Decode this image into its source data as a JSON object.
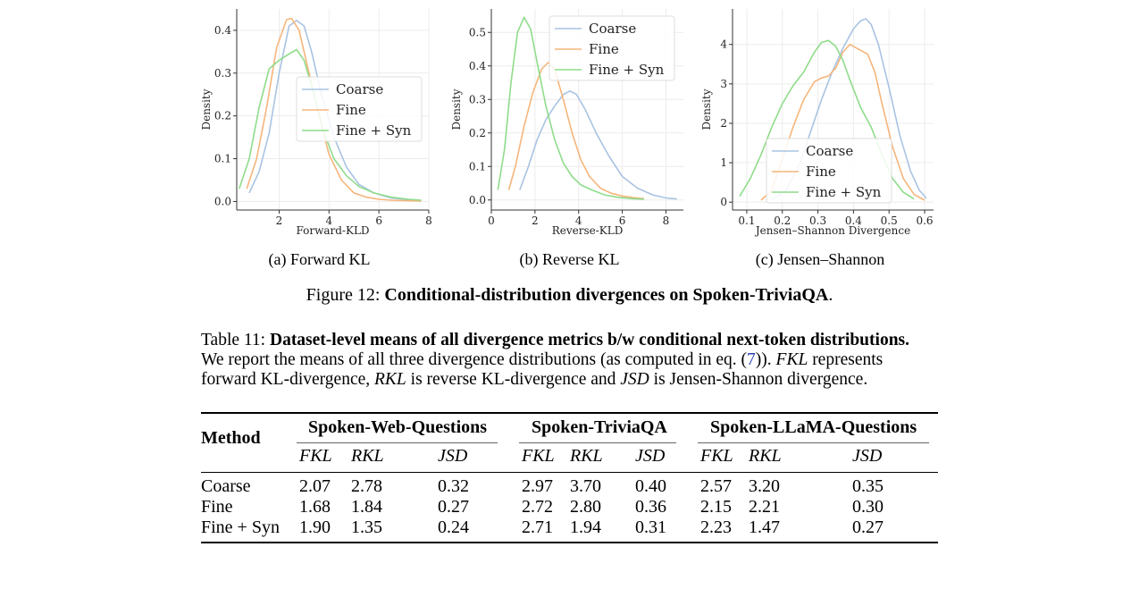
{
  "figure": {
    "label": "Figure 12:",
    "title": "Conditional-distribution divergences on Spoken-TriviaQA",
    "end": ".",
    "subcaptions": [
      "(a) Forward KL",
      "(b) Reverse KL",
      "(c) Jensen–Shannon"
    ]
  },
  "colors": {
    "coarse": "#a9c3e2",
    "fine": "#f6b57b",
    "fine_syn": "#8fdc8a",
    "grid": "#ececec",
    "axis": "#333333"
  },
  "chart_data": [
    {
      "type": "line",
      "xlabel": "Forward-KLD",
      "ylabel": "Density",
      "xlim": [
        0.3,
        8.0
      ],
      "ylim": [
        -0.02,
        0.45
      ],
      "xticks": [
        2,
        4,
        6,
        8
      ],
      "yticks": [
        0.0,
        0.1,
        0.2,
        0.3,
        0.4
      ],
      "xtick_labels": [
        "2",
        "4",
        "6",
        "8"
      ],
      "ytick_labels": [
        "0.0",
        "0.1",
        "0.2",
        "0.3",
        "0.4"
      ],
      "grid": true,
      "legend_position": "center-right",
      "series": [
        {
          "name": "Coarse",
          "x": [
            0.8,
            1.2,
            1.6,
            2.0,
            2.4,
            2.7,
            3.0,
            3.3,
            3.7,
            4.2,
            4.7,
            5.2,
            5.8,
            6.5,
            7.2,
            7.7
          ],
          "y": [
            0.02,
            0.07,
            0.16,
            0.3,
            0.41,
            0.423,
            0.41,
            0.35,
            0.25,
            0.15,
            0.08,
            0.04,
            0.02,
            0.008,
            0.004,
            0.002
          ]
        },
        {
          "name": "Fine",
          "x": [
            0.7,
            1.1,
            1.5,
            1.9,
            2.3,
            2.5,
            2.8,
            3.2,
            3.6,
            4.0,
            4.5,
            5.0,
            5.5,
            6.0,
            6.5,
            7.0,
            7.7
          ],
          "y": [
            0.03,
            0.1,
            0.22,
            0.36,
            0.425,
            0.428,
            0.4,
            0.3,
            0.2,
            0.11,
            0.05,
            0.02,
            0.01,
            0.005,
            0.003,
            0.002,
            0.001
          ]
        },
        {
          "name": "Fine + Syn",
          "x": [
            0.4,
            0.8,
            1.2,
            1.6,
            2.0,
            2.4,
            2.7,
            3.0,
            3.4,
            3.8,
            4.2,
            4.7,
            5.2,
            5.8,
            6.5,
            7.2,
            7.7
          ],
          "y": [
            0.03,
            0.1,
            0.22,
            0.31,
            0.33,
            0.345,
            0.355,
            0.33,
            0.25,
            0.16,
            0.1,
            0.06,
            0.035,
            0.02,
            0.01,
            0.005,
            0.003
          ]
        }
      ]
    },
    {
      "type": "line",
      "xlabel": "Reverse-KLD",
      "ylabel": "Density",
      "xlim": [
        0.0,
        8.8
      ],
      "ylim": [
        -0.03,
        0.57
      ],
      "xticks": [
        0,
        2,
        4,
        6,
        8
      ],
      "yticks": [
        0.0,
        0.1,
        0.2,
        0.3,
        0.4,
        0.5
      ],
      "xtick_labels": [
        "0",
        "2",
        "4",
        "6",
        "8"
      ],
      "ytick_labels": [
        "0.0",
        "0.1",
        "0.2",
        "0.3",
        "0.4",
        "0.5"
      ],
      "grid": true,
      "legend_position": "upper-right",
      "series": [
        {
          "name": "Coarse",
          "x": [
            1.3,
            1.7,
            2.1,
            2.5,
            2.9,
            3.3,
            3.6,
            3.9,
            4.3,
            4.8,
            5.4,
            6.0,
            6.7,
            7.4,
            8.0,
            8.5
          ],
          "y": [
            0.03,
            0.1,
            0.18,
            0.24,
            0.28,
            0.315,
            0.325,
            0.315,
            0.27,
            0.2,
            0.13,
            0.07,
            0.035,
            0.015,
            0.006,
            0.003
          ]
        },
        {
          "name": "Fine",
          "x": [
            0.8,
            1.1,
            1.5,
            1.9,
            2.3,
            2.6,
            2.9,
            3.3,
            3.7,
            4.1,
            4.5,
            5.0,
            5.5,
            6.0,
            6.5,
            7.0
          ],
          "y": [
            0.03,
            0.1,
            0.22,
            0.32,
            0.39,
            0.41,
            0.39,
            0.3,
            0.2,
            0.12,
            0.07,
            0.035,
            0.02,
            0.012,
            0.007,
            0.004
          ]
        },
        {
          "name": "Fine + Syn",
          "x": [
            0.3,
            0.6,
            0.9,
            1.2,
            1.5,
            1.8,
            2.1,
            2.5,
            2.9,
            3.3,
            3.7,
            4.1,
            4.6,
            5.2,
            5.8,
            6.5,
            7.0
          ],
          "y": [
            0.03,
            0.15,
            0.35,
            0.5,
            0.545,
            0.51,
            0.41,
            0.28,
            0.18,
            0.11,
            0.07,
            0.045,
            0.03,
            0.015,
            0.008,
            0.004,
            0.002
          ]
        }
      ]
    },
    {
      "type": "line",
      "xlabel": "Jensen–Shannon Divergence",
      "ylabel": "Density",
      "xlim": [
        0.06,
        0.625
      ],
      "ylim": [
        -0.2,
        4.9
      ],
      "xticks": [
        0.1,
        0.2,
        0.3,
        0.4,
        0.5,
        0.6
      ],
      "yticks": [
        0,
        1,
        2,
        3,
        4
      ],
      "xtick_labels": [
        "0.1",
        "0.2",
        "0.3",
        "0.4",
        "0.5",
        "0.6"
      ],
      "ytick_labels": [
        "0",
        "1",
        "2",
        "3",
        "4"
      ],
      "grid": true,
      "legend_position": "lower-center",
      "series": [
        {
          "name": "Coarse",
          "x": [
            0.17,
            0.21,
            0.25,
            0.28,
            0.31,
            0.34,
            0.37,
            0.4,
            0.42,
            0.435,
            0.45,
            0.47,
            0.5,
            0.53,
            0.56,
            0.585,
            0.605
          ],
          "y": [
            0.05,
            0.3,
            1.0,
            1.8,
            2.6,
            3.3,
            3.9,
            4.4,
            4.6,
            4.65,
            4.5,
            4.0,
            2.9,
            1.7,
            0.8,
            0.3,
            0.1
          ]
        },
        {
          "name": "Fine",
          "x": [
            0.14,
            0.17,
            0.2,
            0.23,
            0.26,
            0.29,
            0.31,
            0.33,
            0.35,
            0.37,
            0.39,
            0.4,
            0.42,
            0.44,
            0.46,
            0.48,
            0.51,
            0.54,
            0.57,
            0.6
          ],
          "y": [
            0.05,
            0.3,
            1.1,
            1.9,
            2.6,
            3.05,
            3.15,
            3.2,
            3.4,
            3.8,
            4.0,
            3.95,
            3.85,
            3.75,
            3.3,
            2.5,
            1.4,
            0.6,
            0.2,
            0.05
          ]
        },
        {
          "name": "Fine + Syn",
          "x": [
            0.08,
            0.11,
            0.14,
            0.17,
            0.2,
            0.23,
            0.26,
            0.29,
            0.31,
            0.33,
            0.35,
            0.37,
            0.39,
            0.42,
            0.45,
            0.48,
            0.51,
            0.54,
            0.57
          ],
          "y": [
            0.15,
            0.6,
            1.2,
            1.9,
            2.5,
            2.95,
            3.3,
            3.8,
            4.05,
            4.1,
            3.95,
            3.6,
            3.1,
            2.4,
            1.9,
            1.2,
            0.6,
            0.25,
            0.08
          ]
        }
      ]
    }
  ],
  "table": {
    "caption_label": "Table 11:",
    "caption_title": "Dataset-level means of all divergence metrics b/w conditional next-token distributions.",
    "caption_line1": "We report the means of all three divergence distributions (as computed in eq. (",
    "caption_ref": "7",
    "caption_line1_end": ")).",
    "caption_fkl": "FKL",
    "caption_represents": "represents",
    "caption_line2a": "forward KL-divergence,",
    "caption_rkl": "RKL",
    "caption_line2b": "is reverse KL-divergence and",
    "caption_jsd": "JSD",
    "caption_line2c": "is Jensen-Shannon divergence.",
    "method_header": "Method",
    "groups": [
      "Spoken-Web-Questions",
      "Spoken-TriviaQA",
      "Spoken-LLaMA-Questions"
    ],
    "metrics": [
      "FKL",
      "RKL",
      "JSD"
    ],
    "rows": [
      {
        "method": "Coarse",
        "values": [
          "2.07",
          "2.78",
          "0.32",
          "2.97",
          "3.70",
          "0.40",
          "2.57",
          "3.20",
          "0.35"
        ]
      },
      {
        "method": "Fine",
        "values": [
          "1.68",
          "1.84",
          "0.27",
          "2.72",
          "2.80",
          "0.36",
          "2.15",
          "2.21",
          "0.30"
        ]
      },
      {
        "method": "Fine + Syn",
        "values": [
          "1.90",
          "1.35",
          "0.24",
          "2.71",
          "1.94",
          "0.31",
          "2.23",
          "1.47",
          "0.27"
        ]
      }
    ]
  }
}
